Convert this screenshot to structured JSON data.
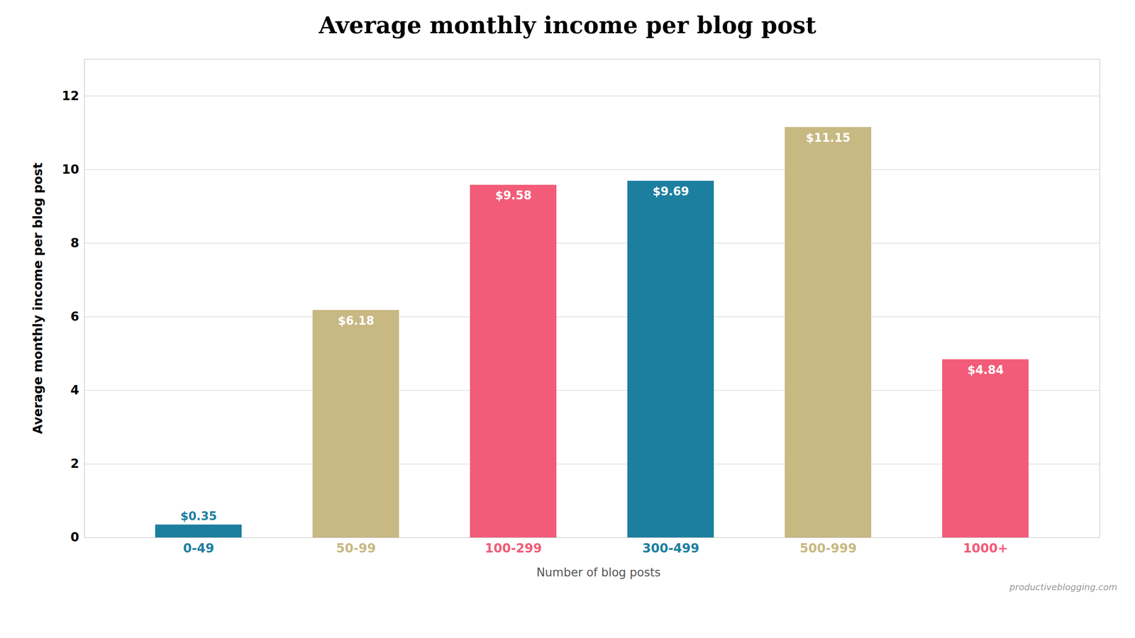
{
  "chart_data": {
    "type": "bar",
    "title": "Average monthly income per blog post",
    "xlabel": "Number of blog posts",
    "ylabel": "Average monthly income per blog post",
    "categories": [
      "0-49",
      "50-99",
      "100-299",
      "300-499",
      "500-999",
      "1000+"
    ],
    "values": [
      0.35,
      6.18,
      9.58,
      9.69,
      11.15,
      4.84
    ],
    "value_labels": [
      "$0.35",
      "$6.18",
      "$9.58",
      "$9.69",
      "$11.15",
      "$4.84"
    ],
    "colors": [
      "#1d7fa0",
      "#c8b882",
      "#f25c78",
      "#1d7fa0",
      "#c8b882",
      "#f25c78"
    ],
    "ylim": [
      0,
      13
    ],
    "yticks": [
      0,
      2,
      4,
      6,
      8,
      10,
      12
    ],
    "grid": true,
    "data_labels": true,
    "annotations": [
      "productiveblogging.com"
    ]
  }
}
